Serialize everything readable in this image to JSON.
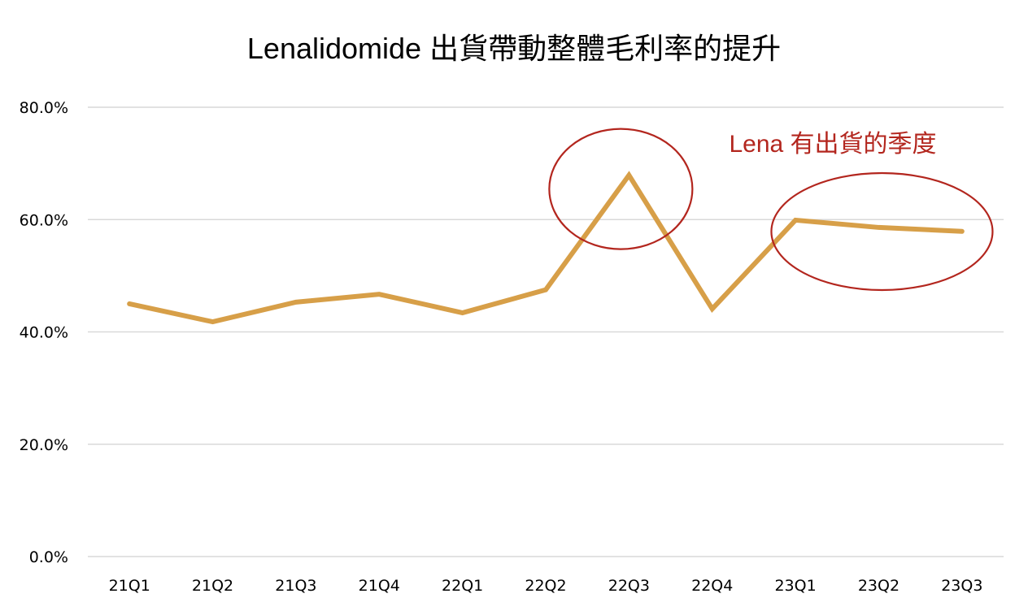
{
  "chart_data": {
    "type": "line",
    "title": "Lenalidomide 出貨帶動整體毛利率的提升",
    "xlabel": "",
    "ylabel": "",
    "categories": [
      "21Q1",
      "21Q2",
      "21Q3",
      "21Q4",
      "22Q1",
      "22Q2",
      "22Q3",
      "22Q4",
      "23Q1",
      "23Q2",
      "23Q3"
    ],
    "series": [
      {
        "name": "毛利率",
        "values": [
          45.0,
          41.8,
          45.3,
          46.7,
          43.4,
          47.5,
          67.9,
          44.1,
          59.9,
          58.6,
          57.9
        ],
        "color": "#D79F48"
      }
    ],
    "ylim": [
      0,
      80
    ],
    "yticks": [
      0,
      20,
      40,
      60,
      80
    ],
    "ytick_labels": [
      "0.0%",
      "20.0%",
      "40.0%",
      "60.0%",
      "80.0%"
    ],
    "grid": true,
    "legend": "none",
    "annotations": {
      "text": "Lena 有出貨的季度",
      "color": "#B3261E",
      "highlighted_categories": [
        [
          "22Q3"
        ],
        [
          "23Q1",
          "23Q2",
          "23Q3"
        ]
      ]
    },
    "gridline_color": "#D9D9D9"
  }
}
